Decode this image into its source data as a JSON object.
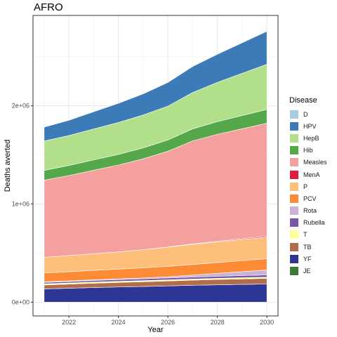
{
  "chart_data": {
    "type": "area",
    "title": "AFRO",
    "xlabel": "Year",
    "ylabel": "Deaths averted",
    "x": [
      2021,
      2022,
      2023,
      2024,
      2025,
      2026,
      2027,
      2028,
      2029,
      2030
    ],
    "xticks": [
      "2022",
      "2024",
      "2026",
      "2028",
      "2030"
    ],
    "xtick_values": [
      2022,
      2024,
      2026,
      2028,
      2030
    ],
    "yticks": [
      "0e+00",
      "1e+06",
      "2e+06"
    ],
    "ytick_values": [
      0,
      1000000,
      2000000
    ],
    "xlim": [
      2020.55,
      2030.45
    ],
    "ylim": [
      -140000,
      2920000
    ],
    "grid": true,
    "legend_position": "right",
    "legend_title": "Disease",
    "stack_order": [
      "YF",
      "TB",
      "T",
      "Rubella",
      "Rota",
      "PCV",
      "P",
      "MenA",
      "Measles",
      "Hib",
      "HepB",
      "HPV",
      "D",
      "JE"
    ],
    "series": [
      {
        "name": "D",
        "color": "#a6cee3",
        "values": [
          0,
          0,
          0,
          0,
          0,
          0,
          0,
          0,
          0,
          0
        ]
      },
      {
        "name": "HPV",
        "color": "#3d7ab8",
        "values": [
          140000,
          155000,
          175000,
          195000,
          215000,
          240000,
          265000,
          285000,
          310000,
          335000
        ]
      },
      {
        "name": "HepB",
        "color": "#b2df8a",
        "values": [
          300000,
          305000,
          315000,
          325000,
          335000,
          345000,
          370000,
          400000,
          430000,
          460000
        ]
      },
      {
        "name": "Hib",
        "color": "#55a84a",
        "values": [
          100000,
          102000,
          105000,
          108000,
          111000,
          115000,
          122000,
          129000,
          135000,
          140000
        ]
      },
      {
        "name": "Measles",
        "color": "#f4a09e",
        "values": [
          785000,
          815000,
          850000,
          885000,
          925000,
          975000,
          1050000,
          1090000,
          1120000,
          1150000
        ]
      },
      {
        "name": "MenA",
        "color": "#e31a40",
        "values": [
          0,
          0,
          0,
          0,
          0,
          2000,
          4000,
          6000,
          8000,
          10000
        ]
      },
      {
        "name": "P",
        "color": "#fdbf7a",
        "values": [
          160000,
          165000,
          170000,
          175000,
          185000,
          195000,
          205000,
          210000,
          215000,
          220000
        ]
      },
      {
        "name": "PCV",
        "color": "#fd8b35",
        "values": [
          90000,
          93000,
          96000,
          99000,
          103000,
          106000,
          108000,
          110000,
          112000,
          115000
        ]
      },
      {
        "name": "Rota",
        "color": "#c9b2d6",
        "values": [
          5000,
          6000,
          7000,
          8000,
          9000,
          12000,
          20000,
          30000,
          40000,
          50000
        ]
      },
      {
        "name": "Rubella",
        "color": "#7a57a6",
        "values": [
          15000,
          15000,
          16000,
          17000,
          18000,
          19000,
          20000,
          21000,
          22000,
          23000
        ]
      },
      {
        "name": "T",
        "color": "#ffff99",
        "values": [
          12000,
          12000,
          12000,
          12000,
          12000,
          12000,
          12000,
          12000,
          12000,
          12000
        ]
      },
      {
        "name": "TB",
        "color": "#b26d4d",
        "values": [
          40000,
          42000,
          44000,
          46000,
          48000,
          50000,
          52000,
          54000,
          56000,
          58000
        ]
      },
      {
        "name": "YF",
        "color": "#2d3695",
        "values": [
          135000,
          142000,
          149000,
          155000,
          160000,
          166000,
          172000,
          177000,
          181000,
          185000
        ]
      },
      {
        "name": "JE",
        "color": "#3a7a35",
        "values": [
          0,
          0,
          0,
          0,
          0,
          0,
          0,
          0,
          0,
          0
        ]
      }
    ]
  }
}
